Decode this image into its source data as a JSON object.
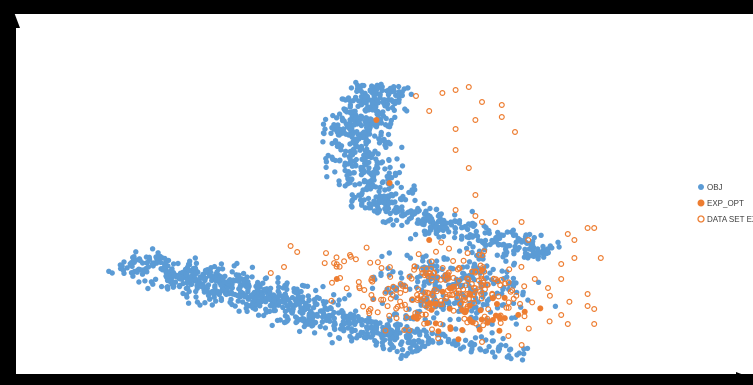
{
  "chart_data": {
    "type": "scatter",
    "title": "",
    "xlabel": "",
    "ylabel": "",
    "xlim": [
      0,
      100
    ],
    "ylim": [
      0,
      100
    ],
    "grid": false,
    "legend_position": "right",
    "colors": {
      "background_outer": "#000000",
      "plot_area": "#ffffff",
      "axis": "#000000",
      "OBJ": "#5b9bd5",
      "EXP_OPT": "#ed7d31",
      "DATA_SET_EXP": "#ed7d31"
    },
    "legend": [
      {
        "name": "OBJ",
        "marker": "filled-circle",
        "color": "#5b9bd5"
      },
      {
        "name": "EXP_OPT",
        "marker": "filled-circle",
        "color": "#ed7d31"
      },
      {
        "name": "DATA SET EXP",
        "marker": "hollow-circle",
        "color": "#ed7d31"
      }
    ],
    "series": [
      {
        "name": "OBJ",
        "marker": "filled-circle",
        "clusters": [
          {
            "shape": "band",
            "from": [
              16,
              34
            ],
            "to": [
              61,
              4
            ],
            "thickness": 5,
            "count": 420
          },
          {
            "shape": "band",
            "from": [
              22,
              30
            ],
            "to": [
              47,
              16
            ],
            "thickness": 7,
            "count": 260
          },
          {
            "shape": "band",
            "from": [
              52,
              12
            ],
            "to": [
              77,
              2
            ],
            "thickness": 3,
            "count": 110
          },
          {
            "shape": "band",
            "from": [
              55,
              52
            ],
            "to": [
              50,
              74
            ],
            "thickness": 6,
            "count": 230
          },
          {
            "shape": "band",
            "from": [
              50,
              74
            ],
            "to": [
              55,
              92
            ],
            "thickness": 5,
            "count": 250
          },
          {
            "shape": "band",
            "from": [
              53,
              52
            ],
            "to": [
              80,
              35
            ],
            "thickness": 5,
            "count": 260
          },
          {
            "shape": "blob",
            "center": [
              66,
              24
            ],
            "spread": [
              11,
              12
            ],
            "count": 260
          }
        ]
      },
      {
        "name": "EXP_OPT",
        "marker": "filled-circle",
        "clusters": [
          {
            "shape": "blob",
            "center": [
              68,
              15
            ],
            "spread": [
              9,
              8
            ],
            "count": 40
          },
          {
            "shape": "points",
            "points": [
              [
                48,
                27
              ],
              [
                56,
                59
              ],
              [
                54,
                80
              ],
              [
                62,
                40
              ],
              [
                70,
                30
              ],
              [
                67,
                10
              ]
            ]
          }
        ]
      },
      {
        "name": "DATA SET EXP",
        "marker": "hollow-circle",
        "clusters": [
          {
            "shape": "blob",
            "center": [
              66,
              24
            ],
            "spread": [
              12,
              12
            ],
            "count": 190
          },
          {
            "shape": "band",
            "from": [
              47,
              36
            ],
            "to": [
              60,
              10
            ],
            "thickness": 6,
            "count": 45
          },
          {
            "shape": "points",
            "points": [
              [
                60,
                88
              ],
              [
                62,
                83
              ],
              [
                64,
                89
              ],
              [
                66,
                90
              ],
              [
                68,
                91
              ],
              [
                70,
                86
              ],
              [
                69,
                80
              ],
              [
                73,
                85
              ],
              [
                73,
                81
              ],
              [
                75,
                76
              ],
              [
                66,
                77
              ],
              [
                66,
                70
              ],
              [
                68,
                64
              ],
              [
                69,
                55
              ],
              [
                66,
                50
              ],
              [
                69,
                48
              ],
              [
                70,
                46
              ],
              [
                72,
                46
              ],
              [
                76,
                46
              ],
              [
                77,
                40
              ],
              [
                83,
                42
              ],
              [
                86,
                44
              ],
              [
                87,
                44
              ],
              [
                84,
                40
              ],
              [
                82,
                32
              ],
              [
                82,
                27
              ],
              [
                80,
                24
              ],
              [
                82,
                15
              ],
              [
                83,
                12
              ],
              [
                86,
                22
              ],
              [
                86,
                18
              ],
              [
                87,
                17
              ],
              [
                84,
                34
              ],
              [
                88,
                34
              ],
              [
                87,
                12
              ],
              [
                78,
                27
              ],
              [
                74,
                8
              ],
              [
                70,
                6
              ],
              [
                76,
                5
              ],
              [
                50,
                35
              ],
              [
                41,
                38
              ],
              [
                42,
                36
              ],
              [
                38,
                29
              ],
              [
                40,
                31
              ]
            ]
          }
        ]
      }
    ]
  }
}
